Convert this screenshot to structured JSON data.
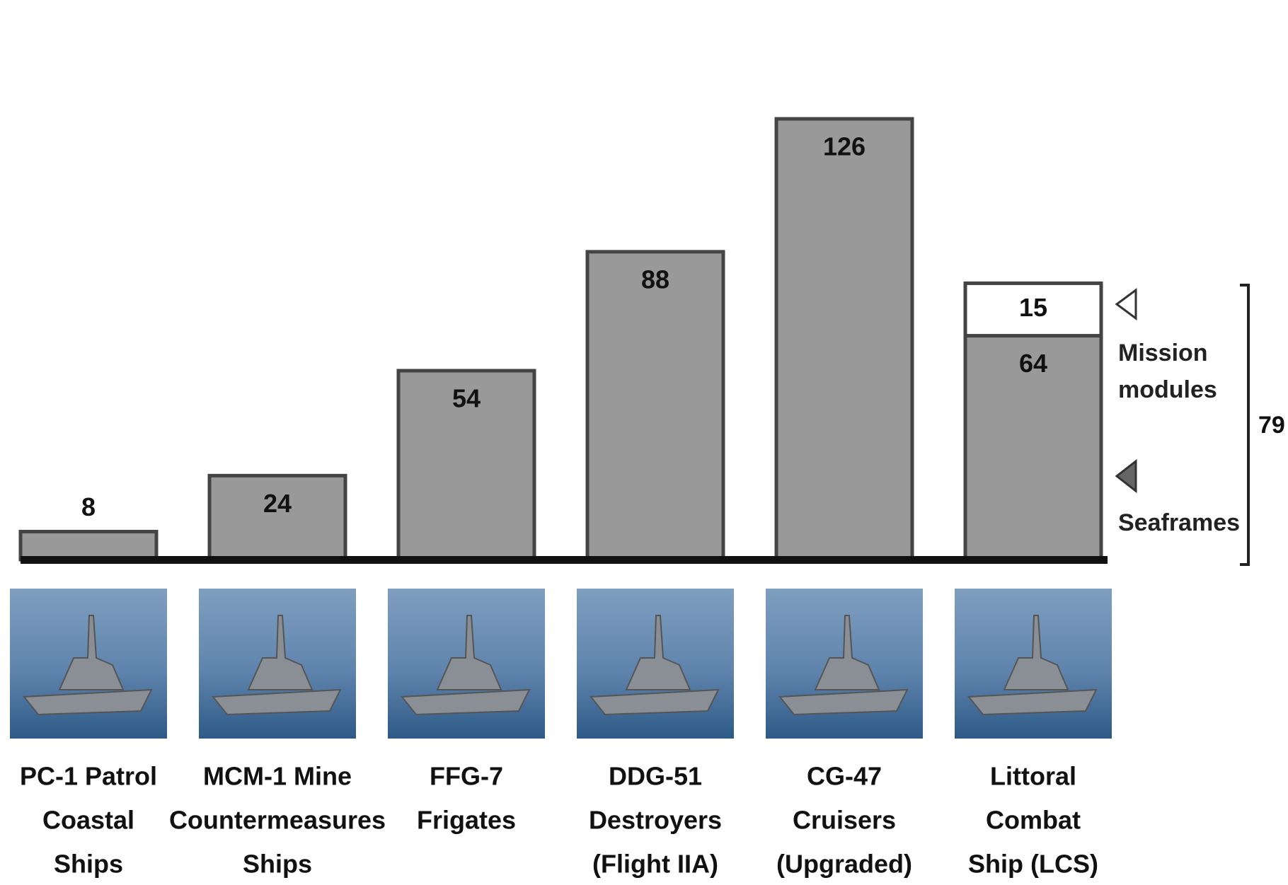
{
  "chart_data": {
    "type": "stacked-bar",
    "categories": [
      [
        "PC-1 Patrol",
        "Coastal",
        "Ships"
      ],
      [
        "MCM-1 Mine",
        "Countermeasures",
        "Ships"
      ],
      [
        "FFG-7",
        "Frigates"
      ],
      [
        "DDG-51",
        "Destroyers",
        "(Flight IIA)"
      ],
      [
        "CG-47",
        "Cruisers",
        "(Upgraded)"
      ],
      [
        "Littoral",
        "Combat",
        "Ship (LCS)"
      ]
    ],
    "series": [
      {
        "name": "Seaframes",
        "color": "#999999",
        "values": [
          8,
          24,
          54,
          88,
          126,
          64
        ]
      },
      {
        "name": "Mission modules",
        "color": "#ffffff",
        "values": [
          null,
          null,
          null,
          null,
          null,
          15
        ]
      }
    ],
    "total": 79
  }
}
